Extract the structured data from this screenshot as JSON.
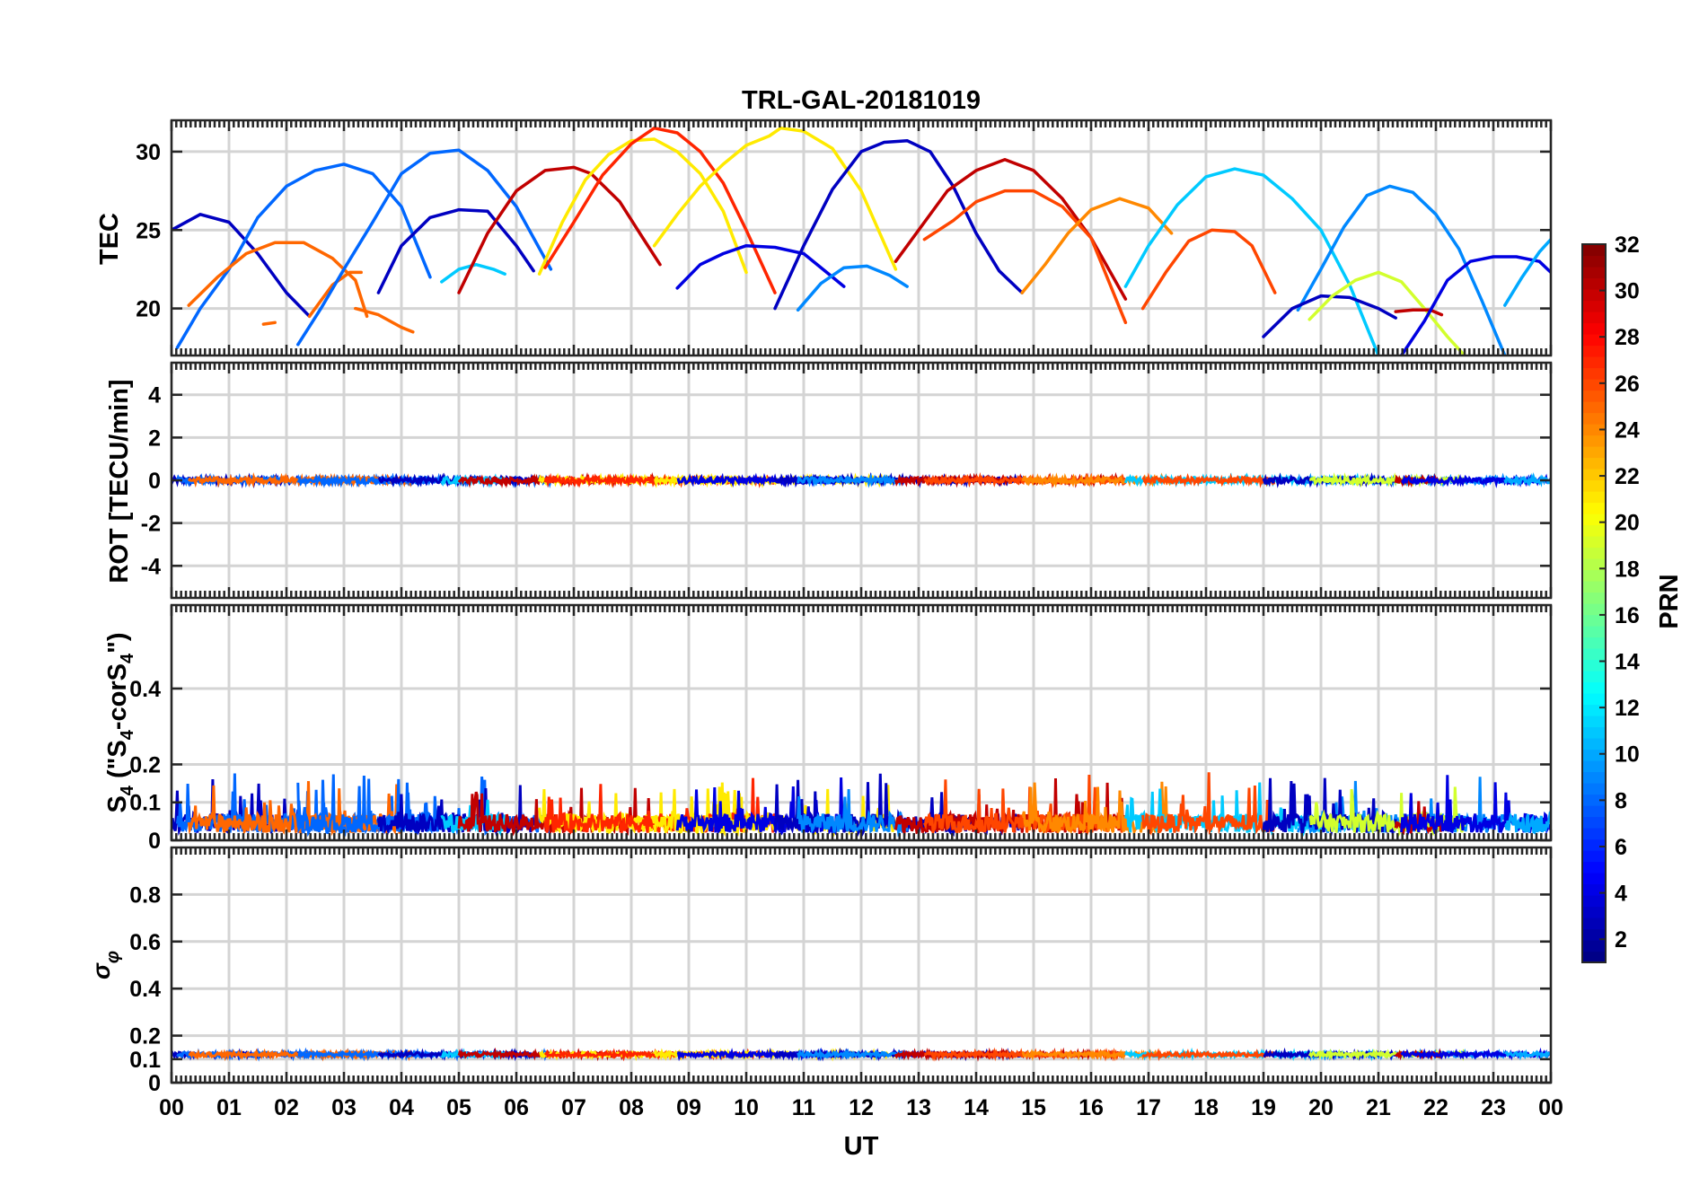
{
  "chart_data": {
    "title": "TRL-GAL-20181019",
    "type": "line",
    "x_axis": {
      "label": "UT",
      "range": [
        0,
        24
      ],
      "tick_labels": [
        "00",
        "01",
        "02",
        "03",
        "04",
        "05",
        "06",
        "07",
        "08",
        "09",
        "10",
        "11",
        "12",
        "13",
        "14",
        "15",
        "16",
        "17",
        "18",
        "19",
        "20",
        "21",
        "22",
        "23",
        "00"
      ]
    },
    "grid": true,
    "colorbar": {
      "label": "PRN",
      "colormap": "jet",
      "range": [
        1,
        32
      ],
      "tick_labels": [
        "2",
        "4",
        "6",
        "8",
        "10",
        "12",
        "14",
        "16",
        "18",
        "20",
        "22",
        "24",
        "26",
        "28",
        "30",
        "32"
      ]
    },
    "panels": [
      {
        "id": "tec",
        "ylabel": "TEC",
        "ylim": [
          17,
          32
        ],
        "yticks": [
          "20",
          "25",
          "30"
        ],
        "tracks": [
          {
            "prn": 3,
            "x": [
              0,
              0.5,
              1,
              1.5,
              2,
              2.4
            ],
            "y": [
              25,
              26,
              25.5,
              23.5,
              21,
              19.5
            ]
          },
          {
            "prn": 8,
            "x": [
              0.1,
              0.5,
              1,
              1.5,
              2,
              2.5,
              3,
              3.5,
              4,
              4.5
            ],
            "y": [
              17.5,
              20,
              22.5,
              25.8,
              27.8,
              28.8,
              29.2,
              28.6,
              26.5,
              22
            ]
          },
          {
            "prn": 25,
            "x": [
              0.3,
              0.8,
              1.3,
              1.8,
              2.3,
              2.8,
              3.2,
              3.4
            ],
            "y": [
              20.2,
              22,
              23.5,
              24.2,
              24.2,
              23.2,
              21.8,
              19.5
            ]
          },
          {
            "prn": 25,
            "x": [
              2.4,
              2.8,
              3.1,
              3.3
            ],
            "y": [
              19.5,
              21.5,
              22.3,
              22.3
            ]
          },
          {
            "prn": 25,
            "x": [
              3.2,
              3.6,
              4,
              4.2
            ],
            "y": [
              20,
              19.6,
              18.8,
              18.5
            ]
          },
          {
            "prn": 25,
            "x": [
              1.6,
              1.8
            ],
            "y": [
              19,
              19.1
            ]
          },
          {
            "prn": 8,
            "x": [
              2.2,
              2.6,
              3,
              3.5,
              4,
              4.5,
              5,
              5.5,
              6,
              6.6
            ],
            "y": [
              17.7,
              20,
              22.5,
              25.5,
              28.6,
              29.9,
              30.1,
              28.8,
              26.5,
              22.5
            ]
          },
          {
            "prn": 3,
            "x": [
              3.6,
              4,
              4.5,
              5,
              5.5,
              6,
              6.3
            ],
            "y": [
              21,
              24,
              25.8,
              26.3,
              26.2,
              24,
              22.4
            ]
          },
          {
            "prn": 11,
            "x": [
              4.7,
              5,
              5.3,
              5.6,
              5.8
            ],
            "y": [
              21.7,
              22.5,
              22.8,
              22.5,
              22.2
            ]
          },
          {
            "prn": 30,
            "x": [
              5,
              5.5,
              6,
              6.5,
              7,
              7.3,
              7.8,
              8.2,
              8.5
            ],
            "y": [
              21,
              24.8,
              27.5,
              28.8,
              29,
              28.6,
              26.8,
              24.5,
              22.8
            ]
          },
          {
            "prn": 21,
            "x": [
              6.4,
              6.8,
              7.2,
              7.6,
              8,
              8.4,
              8.8,
              9.2,
              9.6,
              10
            ],
            "y": [
              22.2,
              25.5,
              28.2,
              29.8,
              30.7,
              30.8,
              30,
              28.6,
              26.2,
              22.3
            ]
          },
          {
            "prn": 27,
            "x": [
              6.5,
              7,
              7.5,
              8,
              8.4,
              8.8,
              9.2,
              9.6,
              10,
              10.5
            ],
            "y": [
              22.6,
              25.5,
              28.5,
              30.5,
              31.5,
              31.2,
              30,
              28,
              25,
              21
            ]
          },
          {
            "prn": 21,
            "x": [
              8.4,
              8.8,
              9.2,
              9.6,
              10,
              10.4,
              10.6,
              11,
              11.5,
              12,
              12.6
            ],
            "y": [
              24,
              26,
              27.8,
              29.2,
              30.4,
              31,
              31.5,
              31.3,
              30.2,
              27.5,
              22.5
            ]
          },
          {
            "prn": 4,
            "x": [
              8.8,
              9.2,
              9.6,
              10,
              10.5,
              11,
              11.4,
              11.7
            ],
            "y": [
              21.3,
              22.8,
              23.5,
              24,
              23.9,
              23.5,
              22.3,
              21.4
            ]
          },
          {
            "prn": 3,
            "x": [
              10.5,
              11,
              11.5,
              12,
              12.4,
              12.8,
              13.2,
              13.6,
              14,
              14.4,
              14.8
            ],
            "y": [
              20,
              24,
              27.6,
              30,
              30.6,
              30.7,
              30,
              27.8,
              24.8,
              22.4,
              21
            ]
          },
          {
            "prn": 9,
            "x": [
              10.9,
              11.3,
              11.7,
              12.1,
              12.5,
              12.8
            ],
            "y": [
              19.9,
              21.6,
              22.6,
              22.7,
              22.1,
              21.4
            ]
          },
          {
            "prn": 30,
            "x": [
              12.6,
              13,
              13.5,
              14,
              14.5,
              15,
              15.5,
              16,
              16.6
            ],
            "y": [
              23,
              25,
              27.5,
              28.8,
              29.5,
              28.8,
              27,
              24.5,
              20.6
            ]
          },
          {
            "prn": 26,
            "x": [
              13.1,
              13.6,
              14,
              14.5,
              15,
              15.5,
              16,
              16.6
            ],
            "y": [
              24.4,
              25.6,
              26.8,
              27.5,
              27.5,
              26.5,
              24.5,
              19.1
            ]
          },
          {
            "prn": 24,
            "x": [
              14.8,
              15.2,
              15.6,
              16,
              16.5,
              17,
              17.4
            ],
            "y": [
              21,
              22.8,
              24.8,
              26.3,
              27,
              26.4,
              24.8
            ]
          },
          {
            "prn": 11,
            "x": [
              16.6,
              17,
              17.5,
              18,
              18.5,
              19,
              19.5,
              20,
              20.5,
              21
            ],
            "y": [
              21.4,
              24,
              26.6,
              28.4,
              28.9,
              28.5,
              27,
              25,
              21.5,
              17
            ]
          },
          {
            "prn": 26,
            "x": [
              16.9,
              17.3,
              17.7,
              18.1,
              18.5,
              18.8,
              19.2
            ],
            "y": [
              20,
              22.3,
              24.3,
              25,
              24.9,
              24,
              21
            ]
          },
          {
            "prn": 9,
            "x": [
              19.6,
              20,
              20.4,
              20.8,
              21.2,
              21.6,
              22,
              22.4,
              22.8,
              23.2
            ],
            "y": [
              19.9,
              22.5,
              25.2,
              27.2,
              27.8,
              27.4,
              26,
              23.8,
              20.5,
              17
            ]
          },
          {
            "prn": 3,
            "x": [
              19,
              19.5,
              20,
              20.5,
              21,
              21.3
            ],
            "y": [
              18.2,
              20,
              20.8,
              20.7,
              20,
              19.4
            ]
          },
          {
            "prn": 19,
            "x": [
              19.8,
              20.2,
              20.6,
              21,
              21.4,
              21.8,
              22.2,
              22.5
            ],
            "y": [
              19.3,
              20.8,
              21.8,
              22.3,
              21.7,
              20,
              18.2,
              17
            ]
          },
          {
            "prn": 30,
            "x": [
              21.3,
              21.6,
              21.9,
              22.1
            ],
            "y": [
              19.8,
              19.9,
              19.9,
              19.6
            ]
          },
          {
            "prn": 4,
            "x": [
              21.4,
              21.8,
              22.2,
              22.6,
              23,
              23.4,
              23.8,
              24
            ],
            "y": [
              17,
              19.2,
              21.8,
              23,
              23.3,
              23.3,
              23,
              22.3
            ]
          },
          {
            "prn": 10,
            "x": [
              23.2,
              23.5,
              23.8,
              24
            ],
            "y": [
              20.2,
              22,
              23.6,
              24.4
            ]
          }
        ]
      },
      {
        "id": "rot",
        "ylabel": "ROT [TECU/min]",
        "ylim": [
          -5.5,
          5.5
        ],
        "yticks": [
          "-4",
          "-2",
          "0",
          "2",
          "4"
        ],
        "typical_value": 0
      },
      {
        "id": "s4",
        "ylabel": "S4 (\"S4-corS4\")",
        "ylim": [
          0,
          0.62
        ],
        "yticks": [
          "0",
          "0.1",
          "0.2",
          "0.4"
        ],
        "typical_range": [
          0.02,
          0.18
        ]
      },
      {
        "id": "sigma_phi",
        "ylabel": "σφ",
        "ylim": [
          0,
          1
        ],
        "yticks": [
          "0",
          "0.1",
          "0.2",
          "0.4",
          "0.6",
          "0.8"
        ],
        "typical_value": 0.12
      }
    ]
  }
}
